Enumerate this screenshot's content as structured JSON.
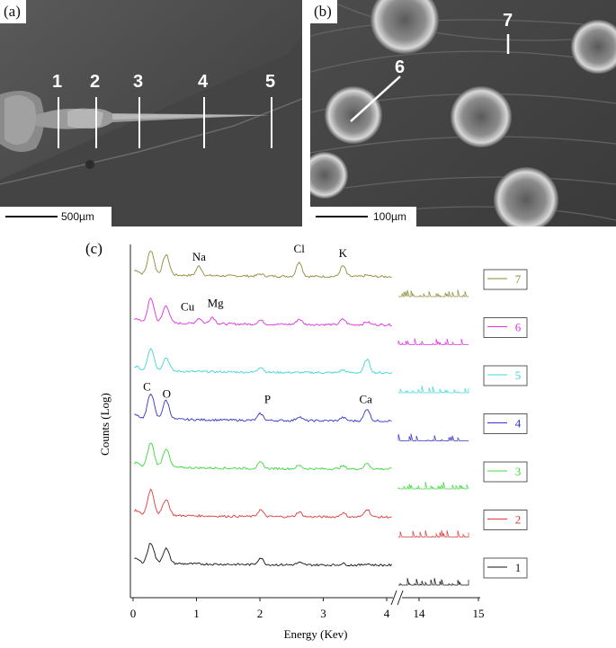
{
  "panel_a": {
    "letter": "(a)",
    "scale_label": "500µm",
    "site_labels": [
      "1",
      "2",
      "3",
      "4",
      "5"
    ]
  },
  "panel_b": {
    "letter": "(b)",
    "scale_label": "100µm",
    "site_labels": [
      "6",
      "7"
    ]
  },
  "panel_c": {
    "letter": "(c)"
  },
  "chart_data": {
    "type": "line",
    "xlabel": "Energy (Kev)",
    "ylabel": "Counts (Log)",
    "x_ticks_left": [
      "0",
      "1",
      "2",
      "3",
      "4"
    ],
    "x_ticks_right": [
      "14",
      "15"
    ],
    "x_tick_14": "14",
    "xlim_left": [
      0,
      4.1
    ],
    "xlim_right": [
      13.5,
      15
    ],
    "broken_axis": true,
    "grid": false,
    "legend_position": "right",
    "element_labels": {
      "spectrum_7": [
        "Na",
        "Cl",
        "K"
      ],
      "spectrum_6": [
        "Cu",
        "Mg"
      ],
      "spectrum_4": [
        "C",
        "O",
        "P",
        "Ca"
      ]
    },
    "peak_energies": {
      "C": 0.28,
      "O": 0.52,
      "Na": 1.04,
      "Mg": 1.25,
      "Cu": 0.93,
      "P": 2.01,
      "Cl": 2.62,
      "K": 3.31,
      "Ca": 3.69
    },
    "series": [
      {
        "name": "7",
        "color": "#8b8b3a",
        "peaks": {
          "C": 0.9,
          "O": 0.75,
          "Na": 0.35,
          "Cl": 0.55,
          "K": 0.4,
          "P": 0.08,
          "Ca": 0.05
        }
      },
      {
        "name": "6",
        "color": "#e030e0",
        "peaks": {
          "C": 0.9,
          "O": 0.65,
          "Na": 0.2,
          "Mg": 0.25,
          "Cl": 0.2,
          "K": 0.2,
          "P": 0.15,
          "Ca": 0.1
        }
      },
      {
        "name": "5",
        "color": "#3fd6d6",
        "peaks": {
          "C": 0.85,
          "O": 0.5,
          "P": 0.2,
          "Ca": 0.5,
          "K": 0.1
        }
      },
      {
        "name": "4",
        "color": "#3434c8",
        "peaks": {
          "C": 0.95,
          "O": 0.7,
          "P": 0.25,
          "Cl": 0.15,
          "K": 0.12,
          "Ca": 0.45
        }
      },
      {
        "name": "3",
        "color": "#3cd83c",
        "peaks": {
          "C": 0.9,
          "O": 0.7,
          "P": 0.22,
          "Cl": 0.12,
          "K": 0.1,
          "Ca": 0.2
        }
      },
      {
        "name": "2",
        "color": "#e03a3a",
        "peaks": {
          "C": 0.95,
          "O": 0.6,
          "P": 0.25,
          "Cl": 0.18,
          "K": 0.15,
          "Ca": 0.3
        }
      },
      {
        "name": "1",
        "color": "#111111",
        "peaks": {
          "C": 0.75,
          "O": 0.55,
          "P": 0.25,
          "Cl": 0.08,
          "K": 0.05,
          "Ca": 0.05
        }
      }
    ]
  }
}
